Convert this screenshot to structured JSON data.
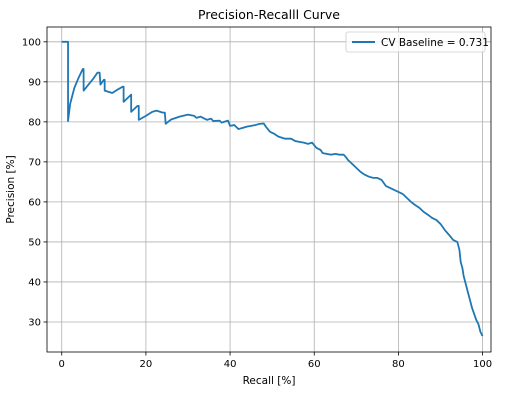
{
  "chart_data": {
    "type": "line",
    "title": "Precision-Recalll Curve",
    "xlabel": "Recall [%]",
    "ylabel": "Precision [%]",
    "xlim": [
      -3.5,
      102
    ],
    "ylim": [
      22.5,
      103.7
    ],
    "x_ticks": [
      0,
      20,
      40,
      60,
      80,
      100
    ],
    "y_ticks": [
      30,
      40,
      50,
      60,
      70,
      80,
      90,
      100
    ],
    "x_tick_labels": [
      "0",
      "20",
      "40",
      "60",
      "80",
      "100"
    ],
    "y_tick_labels": [
      "30",
      "40",
      "50",
      "60",
      "70",
      "80",
      "90",
      "100"
    ],
    "grid": true,
    "legend_position": "top-right",
    "colors": {
      "line": "#1f77b4",
      "grid": "#b0b0b0",
      "frame": "#000000"
    },
    "series": [
      {
        "name": "CV Baseline = 0.731",
        "x": [
          0,
          1.4,
          1.5,
          1.5,
          2.0,
          3.0,
          4.0,
          5.0,
          5.2,
          5.2,
          6.5,
          7.5,
          8.5,
          9.0,
          9.2,
          9.2,
          10.0,
          10.2,
          10.2,
          12.0,
          13.5,
          14.5,
          14.7,
          14.7,
          16.0,
          16.5,
          16.5,
          17.5,
          18.0,
          18.3,
          18.3,
          20.0,
          21.5,
          22.5,
          24.0,
          24.5,
          24.7,
          24.7,
          26.0,
          28.0,
          30.0,
          31.5,
          32.0,
          33.0,
          34.5,
          35.5,
          36.0,
          37.5,
          38.0,
          39.5,
          40.0,
          41.0,
          42.0,
          43.0,
          44.0,
          45.0,
          46.0,
          47.0,
          48.0,
          48.5,
          49.5,
          50.5,
          51.5,
          53.0,
          54.5,
          55.5,
          56.5,
          57.5,
          58.5,
          59.5,
          60.5,
          61.5,
          62.0,
          63.0,
          64.0,
          65.0,
          66.0,
          67.0,
          67.5,
          68.0,
          69.0,
          70.0,
          71.0,
          72.0,
          73.0,
          74.0,
          75.0,
          76.0,
          77.0,
          78.0,
          79.0,
          80.0,
          81.0,
          82.0,
          83.0,
          84.0,
          85.0,
          86.0,
          87.0,
          88.0,
          89.0,
          90.0,
          91.0,
          92.0,
          93.0,
          94.0,
          94.5,
          94.8,
          95.2,
          95.5,
          96.0,
          96.5,
          97.0,
          97.5,
          98.0,
          98.5,
          99.0,
          99.5,
          100.0
        ],
        "y": [
          100,
          100,
          100,
          80.2,
          84.5,
          88.5,
          91.0,
          93.2,
          93.2,
          87.8,
          89.5,
          90.8,
          92.3,
          92.3,
          89.3,
          89.3,
          90.5,
          90.5,
          87.8,
          87.2,
          88.2,
          88.8,
          88.8,
          85.0,
          86.3,
          86.8,
          82.5,
          83.5,
          84.0,
          84.0,
          80.5,
          81.5,
          82.5,
          82.8,
          82.3,
          82.3,
          79.5,
          79.5,
          80.6,
          81.3,
          81.8,
          81.5,
          81.0,
          81.3,
          80.5,
          80.8,
          80.2,
          80.3,
          79.8,
          80.3,
          79.0,
          79.2,
          78.2,
          78.5,
          78.8,
          79.0,
          79.2,
          79.5,
          79.6,
          78.8,
          77.5,
          77.0,
          76.3,
          75.8,
          75.8,
          75.2,
          75.0,
          74.8,
          74.5,
          74.8,
          73.5,
          73.0,
          72.2,
          72.0,
          71.8,
          72.0,
          71.8,
          71.8,
          71.2,
          70.5,
          69.5,
          68.5,
          67.5,
          66.8,
          66.3,
          66.0,
          66.0,
          65.5,
          64.0,
          63.5,
          63.0,
          62.5,
          62.0,
          61.0,
          60.0,
          59.2,
          58.5,
          57.5,
          56.8,
          56.0,
          55.5,
          54.5,
          53.0,
          51.8,
          50.5,
          50.0,
          48.0,
          45.0,
          43.5,
          41.5,
          39.5,
          37.5,
          35.5,
          33.5,
          32.0,
          30.5,
          29.5,
          27.5,
          26.5
        ]
      }
    ]
  }
}
